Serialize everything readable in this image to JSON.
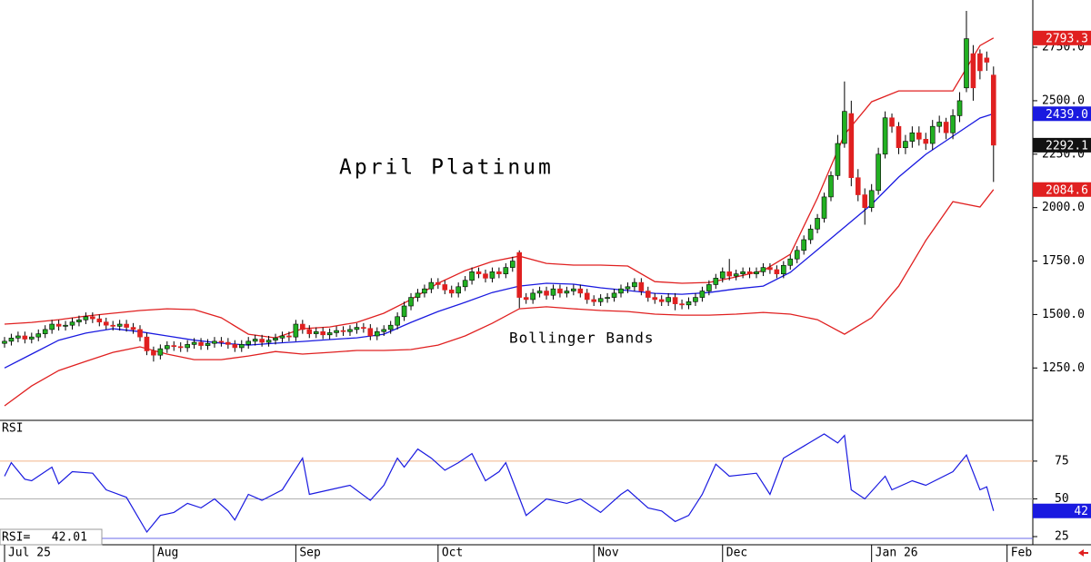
{
  "chart_data": [
    {
      "type": "candlestick",
      "title": "April Platinum",
      "annotation": "Bollinger Bands",
      "up_color": "#22b022",
      "down_color": "#e02020",
      "last_label": "2292.1",
      "xlim": [
        -0.67,
        151.8
      ],
      "xticks": [
        {
          "value": 0,
          "label": "Jul 25"
        },
        {
          "value": 22,
          "label": "Aug"
        },
        {
          "value": 43,
          "label": "Sep"
        },
        {
          "value": 64,
          "label": "Oct"
        },
        {
          "value": 87,
          "label": "Nov"
        },
        {
          "value": 106,
          "label": "Dec"
        },
        {
          "value": 128,
          "label": "Jan 26"
        },
        {
          "value": 148,
          "label": "Feb"
        }
      ],
      "ylim": [
        1005,
        2971
      ],
      "yticks": [
        {
          "value": 2750,
          "label": "2750.0"
        },
        {
          "value": 2500,
          "label": "2500.0"
        },
        {
          "value": 2250,
          "label": "2250.0"
        },
        {
          "value": 2000,
          "label": "2000.0"
        },
        {
          "value": 1750,
          "label": "1750.0"
        },
        {
          "value": 1500,
          "label": "1500.0"
        },
        {
          "value": 1250,
          "label": "1250.0"
        }
      ],
      "open": [
        1365,
        1375,
        1390,
        1400,
        1385,
        1395,
        1410,
        1430,
        1455,
        1445,
        1450,
        1465,
        1475,
        1490,
        1480,
        1465,
        1450,
        1445,
        1455,
        1440,
        1430,
        1395,
        1330,
        1310,
        1340,
        1355,
        1350,
        1345,
        1360,
        1370,
        1355,
        1365,
        1375,
        1370,
        1360,
        1345,
        1360,
        1375,
        1385,
        1370,
        1380,
        1390,
        1400,
        1395,
        1455,
        1430,
        1410,
        1420,
        1405,
        1415,
        1425,
        1420,
        1430,
        1440,
        1435,
        1400,
        1420,
        1430,
        1450,
        1490,
        1540,
        1580,
        1600,
        1620,
        1650,
        1640,
        1615,
        1600,
        1630,
        1660,
        1700,
        1690,
        1670,
        1700,
        1690,
        1720,
        1790,
        1580,
        1570,
        1600,
        1610,
        1590,
        1620,
        1600,
        1610,
        1620,
        1600,
        1570,
        1560,
        1575,
        1580,
        1600,
        1620,
        1630,
        1650,
        1610,
        1580,
        1570,
        1560,
        1580,
        1550,
        1545,
        1560,
        1580,
        1610,
        1640,
        1670,
        1700,
        1680,
        1690,
        1700,
        1690,
        1700,
        1720,
        1710,
        1690,
        1730,
        1760,
        1800,
        1850,
        1900,
        1950,
        2050,
        2150,
        2300,
        2440,
        2140,
        2060,
        2000,
        2080,
        2250,
        2420,
        2380,
        2280,
        2310,
        2350,
        2320,
        2300,
        2380,
        2400,
        2350,
        2430,
        2560,
        2720,
        2720,
        2700,
        2620
      ],
      "high": [
        1395,
        1410,
        1420,
        1420,
        1415,
        1430,
        1450,
        1475,
        1475,
        1470,
        1485,
        1495,
        1510,
        1510,
        1500,
        1485,
        1470,
        1475,
        1475,
        1460,
        1450,
        1415,
        1350,
        1360,
        1375,
        1375,
        1370,
        1380,
        1390,
        1390,
        1385,
        1395,
        1395,
        1390,
        1380,
        1380,
        1395,
        1405,
        1405,
        1400,
        1410,
        1420,
        1420,
        1475,
        1475,
        1450,
        1440,
        1440,
        1435,
        1445,
        1445,
        1450,
        1460,
        1460,
        1455,
        1440,
        1450,
        1470,
        1510,
        1560,
        1600,
        1620,
        1640,
        1670,
        1670,
        1660,
        1635,
        1650,
        1680,
        1720,
        1720,
        1710,
        1720,
        1720,
        1740,
        1770,
        1800,
        1600,
        1620,
        1630,
        1630,
        1640,
        1640,
        1630,
        1640,
        1640,
        1620,
        1590,
        1595,
        1600,
        1620,
        1640,
        1650,
        1670,
        1670,
        1630,
        1600,
        1590,
        1600,
        1600,
        1570,
        1580,
        1600,
        1630,
        1660,
        1690,
        1720,
        1760,
        1710,
        1720,
        1720,
        1720,
        1740,
        1740,
        1730,
        1750,
        1780,
        1820,
        1870,
        1920,
        1970,
        2070,
        2170,
        2340,
        2590,
        2500,
        2180,
        2090,
        2110,
        2280,
        2450,
        2440,
        2400,
        2340,
        2380,
        2380,
        2350,
        2410,
        2430,
        2420,
        2460,
        2540,
        2920,
        2760,
        2740,
        2730,
        2660
      ],
      "low": [
        1345,
        1355,
        1370,
        1365,
        1365,
        1375,
        1390,
        1410,
        1425,
        1425,
        1430,
        1445,
        1455,
        1460,
        1445,
        1430,
        1425,
        1425,
        1420,
        1410,
        1375,
        1310,
        1280,
        1290,
        1320,
        1330,
        1325,
        1325,
        1340,
        1335,
        1335,
        1345,
        1350,
        1340,
        1325,
        1325,
        1340,
        1355,
        1350,
        1350,
        1360,
        1370,
        1375,
        1375,
        1410,
        1390,
        1390,
        1385,
        1385,
        1395,
        1400,
        1400,
        1410,
        1415,
        1380,
        1380,
        1400,
        1410,
        1430,
        1470,
        1520,
        1560,
        1580,
        1600,
        1620,
        1595,
        1580,
        1580,
        1610,
        1640,
        1670,
        1650,
        1650,
        1670,
        1670,
        1700,
        1530,
        1550,
        1550,
        1580,
        1570,
        1570,
        1580,
        1580,
        1590,
        1580,
        1550,
        1540,
        1540,
        1555,
        1560,
        1580,
        1600,
        1610,
        1590,
        1560,
        1550,
        1540,
        1540,
        1520,
        1525,
        1525,
        1540,
        1560,
        1590,
        1620,
        1650,
        1660,
        1660,
        1670,
        1670,
        1670,
        1680,
        1690,
        1670,
        1670,
        1710,
        1740,
        1780,
        1830,
        1880,
        1930,
        2030,
        2130,
        2280,
        2100,
        2030,
        1920,
        1980,
        2060,
        2230,
        2350,
        2250,
        2250,
        2280,
        2290,
        2270,
        2270,
        2350,
        2320,
        2320,
        2400,
        2540,
        2500,
        2600,
        2640,
        2120
      ],
      "close": [
        1375,
        1390,
        1400,
        1385,
        1395,
        1410,
        1430,
        1455,
        1445,
        1450,
        1465,
        1475,
        1490,
        1480,
        1465,
        1450,
        1445,
        1455,
        1440,
        1430,
        1395,
        1330,
        1310,
        1340,
        1355,
        1350,
        1345,
        1360,
        1370,
        1355,
        1365,
        1375,
        1370,
        1360,
        1345,
        1360,
        1375,
        1385,
        1370,
        1380,
        1390,
        1400,
        1395,
        1455,
        1430,
        1410,
        1420,
        1405,
        1415,
        1425,
        1420,
        1430,
        1440,
        1435,
        1400,
        1420,
        1430,
        1450,
        1490,
        1540,
        1580,
        1600,
        1620,
        1650,
        1640,
        1615,
        1600,
        1630,
        1660,
        1700,
        1690,
        1670,
        1700,
        1690,
        1720,
        1750,
        1580,
        1570,
        1600,
        1610,
        1590,
        1620,
        1600,
        1610,
        1620,
        1600,
        1570,
        1560,
        1575,
        1580,
        1600,
        1620,
        1630,
        1650,
        1610,
        1580,
        1570,
        1560,
        1580,
        1550,
        1545,
        1560,
        1580,
        1610,
        1640,
        1670,
        1700,
        1680,
        1690,
        1700,
        1690,
        1700,
        1720,
        1710,
        1690,
        1730,
        1760,
        1800,
        1850,
        1900,
        1950,
        2050,
        2150,
        2300,
        2450,
        2140,
        2060,
        2000,
        2080,
        2250,
        2420,
        2380,
        2280,
        2310,
        2350,
        2320,
        2300,
        2380,
        2400,
        2350,
        2430,
        2500,
        2790,
        2560,
        2640,
        2680,
        2292.1
      ],
      "series": [
        {
          "color": "#e02020",
          "tag_color": "#e02020",
          "last_label": "2793.3",
          "x": [
            0,
            4,
            8,
            12,
            16,
            20,
            24,
            28,
            32,
            36,
            40,
            44,
            48,
            52,
            56,
            60,
            64,
            68,
            72,
            76,
            80,
            84,
            88,
            92,
            96,
            100,
            104,
            108,
            112,
            116,
            120,
            124,
            128,
            132,
            136,
            140,
            144,
            146
          ],
          "values": [
            1455,
            1463,
            1476,
            1493,
            1506,
            1519,
            1527,
            1523,
            1485,
            1408,
            1391,
            1434,
            1442,
            1463,
            1506,
            1570,
            1646,
            1705,
            1748,
            1773,
            1739,
            1731,
            1731,
            1727,
            1654,
            1646,
            1650,
            1676,
            1705,
            1782,
            2045,
            2342,
            2495,
            2546,
            2546,
            2546,
            2758,
            2793.3
          ]
        },
        {
          "color": "#1a1ae0",
          "tag_color": "#1a1ae0",
          "last_label": "2439.0",
          "x": [
            0,
            4,
            8,
            12,
            16,
            20,
            24,
            28,
            32,
            36,
            40,
            44,
            48,
            52,
            56,
            60,
            64,
            68,
            72,
            76,
            80,
            84,
            88,
            92,
            96,
            100,
            104,
            108,
            112,
            116,
            120,
            124,
            128,
            132,
            136,
            140,
            144,
            146
          ],
          "values": [
            1250,
            1315,
            1380,
            1413,
            1434,
            1420,
            1400,
            1380,
            1366,
            1357,
            1366,
            1374,
            1383,
            1391,
            1408,
            1463,
            1514,
            1557,
            1603,
            1633,
            1646,
            1642,
            1625,
            1612,
            1599,
            1595,
            1603,
            1620,
            1633,
            1697,
            1803,
            1909,
            2015,
            2143,
            2249,
            2334,
            2419,
            2439.0
          ]
        },
        {
          "color": "#e02020",
          "tag_color": "#e02020",
          "last_label": "2084.6",
          "x": [
            0,
            4,
            8,
            12,
            16,
            20,
            24,
            28,
            32,
            36,
            40,
            44,
            48,
            52,
            56,
            60,
            64,
            68,
            72,
            76,
            80,
            84,
            88,
            92,
            96,
            100,
            104,
            108,
            112,
            116,
            120,
            124,
            128,
            132,
            136,
            140,
            144,
            146
          ],
          "values": [
            1073,
            1166,
            1238,
            1281,
            1323,
            1349,
            1315,
            1289,
            1289,
            1306,
            1327,
            1315,
            1323,
            1332,
            1332,
            1336,
            1357,
            1400,
            1459,
            1527,
            1536,
            1527,
            1519,
            1514,
            1502,
            1497,
            1497,
            1502,
            1510,
            1502,
            1476,
            1408,
            1485,
            1633,
            1846,
            2028,
            2003,
            2084.6
          ]
        }
      ]
    },
    {
      "type": "line",
      "title": "RSI",
      "readout": "RSI=   42.01",
      "color": "#1a1ae0",
      "last_label": "42",
      "xlim": [
        -0.67,
        151.8
      ],
      "ylim": [
        19.6,
        102
      ],
      "yticks": [
        75,
        50,
        25
      ],
      "levels": [
        {
          "value": 75,
          "color": "#f2b48a"
        },
        {
          "value": 50,
          "color": "#b0b0b0"
        }
      ],
      "x": [
        0,
        1,
        3,
        4,
        5,
        7,
        8,
        10,
        13,
        15,
        18,
        21,
        23,
        25,
        27,
        29,
        31,
        33,
        34,
        36,
        38,
        41,
        44,
        45,
        48,
        51,
        54,
        56,
        58,
        59,
        61,
        63,
        65,
        67,
        69,
        71,
        73,
        74,
        77,
        80,
        83,
        85,
        88,
        91,
        92,
        95,
        97,
        99,
        101,
        103,
        105,
        107,
        111,
        113,
        115,
        118,
        121,
        123,
        124,
        125,
        127,
        130,
        131,
        134,
        136,
        140,
        142,
        144,
        145,
        146
      ],
      "values": [
        65,
        74,
        63,
        62,
        65,
        71,
        60,
        68,
        67,
        56,
        51,
        28,
        39,
        41,
        47,
        44,
        50,
        42,
        36,
        53,
        49,
        56,
        77,
        53,
        56,
        59,
        49,
        59,
        77,
        71,
        83,
        77,
        69,
        74,
        80,
        62,
        68,
        74,
        39,
        50,
        47,
        50,
        41,
        53,
        56,
        44,
        42,
        35,
        39,
        53,
        73,
        65,
        67,
        53,
        77,
        85,
        93,
        87,
        92,
        56,
        50,
        65,
        56,
        62,
        59,
        68,
        79,
        56,
        58,
        42.01
      ]
    }
  ]
}
